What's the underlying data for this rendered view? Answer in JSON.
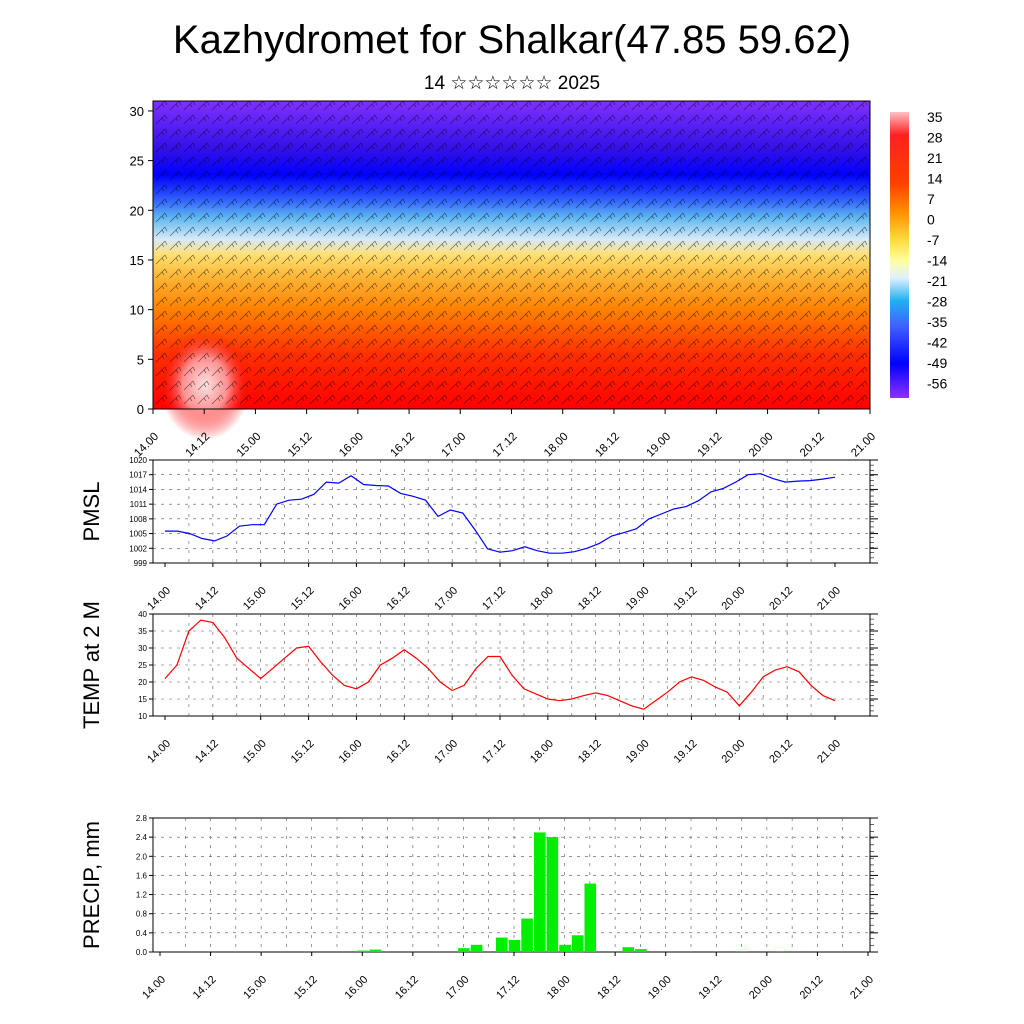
{
  "header": {
    "title": "Kazhydromet for Shalkar(47.85 59.62)",
    "subtitle": "14 ☆☆☆☆☆☆ 2025"
  },
  "time_labels": [
    "14.00",
    "14.12",
    "15.00",
    "15.12",
    "16.00",
    "16.12",
    "17.00",
    "17.12",
    "18.00",
    "18.12",
    "19.00",
    "19.12",
    "20.00",
    "20.12",
    "21.00"
  ],
  "colors": {
    "pmsl": "#0000ff",
    "temp": "#ff0000",
    "precip": "#00ee00",
    "axis": "#000000"
  },
  "chart_data": [
    {
      "type": "heatmap",
      "name": "cross-section",
      "ylim": [
        0,
        31
      ],
      "yticks": [
        0,
        5,
        10,
        15,
        20,
        25,
        30
      ],
      "colorbar_labels": [
        "35",
        "28",
        "21",
        "14",
        "7",
        "0",
        "-7",
        "-14",
        "-21",
        "-28",
        "-35",
        "-42",
        "-49",
        "-56"
      ],
      "description_units": "temperature (°C) by height with wind barbs"
    },
    {
      "type": "line",
      "ylabel": "PMSL",
      "ylim": [
        999,
        1020
      ],
      "yticks": [
        999,
        1002,
        1005,
        1008,
        1011,
        1014,
        1017,
        1020
      ],
      "values": [
        1005.5,
        1005.5,
        1005,
        1004,
        1003.5,
        1004.5,
        1006.5,
        1006.8,
        1006.8,
        1011,
        1011.8,
        1012,
        1013,
        1015.5,
        1015.3,
        1016.8,
        1015,
        1014.8,
        1014.7,
        1013.2,
        1012.6,
        1011.8,
        1008.5,
        1009.8,
        1009.2,
        1005.7,
        1001.9,
        1001.2,
        1001.5,
        1002.3,
        1001.5,
        1001,
        1001,
        1001.3,
        1002,
        1003,
        1004.5,
        1005.2,
        1006,
        1008,
        1009,
        1010,
        1010.5,
        1011.7,
        1013.5,
        1014.2,
        1015.5,
        1017,
        1017.2,
        1016.2,
        1015.5,
        1015.7,
        1015.8,
        1016.1,
        1016.5
      ]
    },
    {
      "type": "line",
      "ylabel": "TEMP at 2 M",
      "ylim": [
        10,
        40
      ],
      "yticks": [
        10,
        15,
        20,
        25,
        30,
        35,
        40
      ],
      "values": [
        21,
        25,
        35,
        38.2,
        37.5,
        33,
        27,
        24,
        21,
        24,
        27,
        30,
        30.5,
        26,
        22,
        19,
        18,
        20,
        25,
        27,
        29.5,
        27,
        24,
        20,
        17.5,
        19,
        24,
        27.5,
        27.5,
        22,
        18,
        16.5,
        15,
        14.5,
        15,
        16,
        16.8,
        16,
        14.5,
        13,
        12,
        14.5,
        17,
        20,
        21.5,
        20.5,
        18.5,
        17,
        13,
        17,
        21.5,
        23.5,
        24.5,
        23,
        19,
        16,
        14.5
      ]
    },
    {
      "type": "bar",
      "ylabel": "PRECIP, mm",
      "ylim": [
        0,
        2.8
      ],
      "yticks": [
        "0.0",
        "0.4",
        "0.8",
        "1.2",
        "1.6",
        "2.0",
        "2.4",
        "2.8"
      ],
      "values": [
        0,
        0,
        0,
        0,
        0,
        0,
        0,
        0,
        0,
        0,
        0,
        0,
        0,
        0,
        0,
        0,
        0.03,
        0.05,
        0,
        0,
        0,
        0,
        0,
        0,
        0.08,
        0.15,
        0,
        0.3,
        0.25,
        0.7,
        2.5,
        2.4,
        0.15,
        0.35,
        1.43,
        0,
        0,
        0.1,
        0.06,
        0,
        0,
        0,
        0,
        0,
        0,
        0,
        0.02,
        0,
        0,
        0.02,
        0,
        0,
        0,
        0,
        0,
        0,
        0
      ]
    }
  ]
}
